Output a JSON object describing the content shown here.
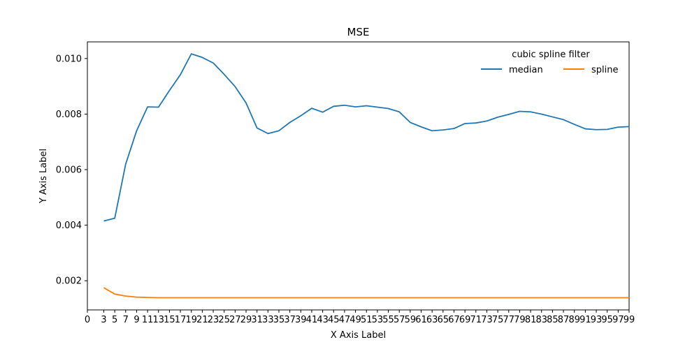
{
  "chart_data": {
    "type": "line",
    "title": "MSE",
    "xlabel": "X Axis Label",
    "ylabel": "Y Axis Label",
    "xlim": [
      0,
      99
    ],
    "ylim": [
      0.00095,
      0.0106
    ],
    "grid": false,
    "x": [
      3,
      5,
      7,
      9,
      11,
      13,
      15,
      17,
      19,
      21,
      23,
      25,
      27,
      29,
      31,
      33,
      35,
      37,
      39,
      41,
      43,
      45,
      47,
      49,
      51,
      53,
      55,
      57,
      59,
      61,
      63,
      65,
      67,
      69,
      71,
      73,
      75,
      77,
      79,
      81,
      83,
      85,
      87,
      89,
      91,
      93,
      95,
      97,
      99
    ],
    "x_ticks": [
      0,
      3,
      5,
      7,
      9,
      11,
      13,
      15,
      17,
      19,
      21,
      23,
      25,
      27,
      29,
      31,
      33,
      35,
      37,
      39,
      41,
      43,
      45,
      47,
      49,
      51,
      53,
      55,
      57,
      59,
      61,
      63,
      65,
      67,
      69,
      71,
      73,
      75,
      77,
      79,
      81,
      83,
      85,
      87,
      89,
      91,
      93,
      95,
      97,
      99
    ],
    "y_ticks": [
      "0.002",
      "0.004",
      "0.006",
      "0.008",
      "0.010"
    ],
    "legend": {
      "title": "cubic spline filter",
      "placement": "top-right",
      "ncol": 2
    },
    "series": [
      {
        "name": "median",
        "color": "#1f77b4",
        "values": [
          0.00415,
          0.00425,
          0.0062,
          0.0074,
          0.00826,
          0.00825,
          0.00885,
          0.00942,
          0.01017,
          0.01004,
          0.00984,
          0.00943,
          0.00899,
          0.0084,
          0.0075,
          0.0073,
          0.0074,
          0.0077,
          0.00794,
          0.00821,
          0.00807,
          0.00828,
          0.00832,
          0.00826,
          0.0083,
          0.00825,
          0.0082,
          0.00808,
          0.0077,
          0.00754,
          0.0074,
          0.00743,
          0.00748,
          0.00766,
          0.00768,
          0.00775,
          0.00789,
          0.00799,
          0.0081,
          0.00808,
          0.008,
          0.0079,
          0.0078,
          0.00763,
          0.00747,
          0.00744,
          0.00745,
          0.00753,
          0.00755
        ]
      },
      {
        "name": "spline",
        "color": "#ff7f0e",
        "values": [
          0.00175,
          0.00152,
          0.00145,
          0.00141,
          0.0014,
          0.00139,
          0.00139,
          0.00139,
          0.00139,
          0.00139,
          0.00139,
          0.00139,
          0.00139,
          0.00139,
          0.00139,
          0.00139,
          0.00139,
          0.00139,
          0.00139,
          0.00139,
          0.00139,
          0.00139,
          0.00139,
          0.00139,
          0.00139,
          0.00139,
          0.00139,
          0.00139,
          0.00139,
          0.00139,
          0.00139,
          0.00139,
          0.00139,
          0.00139,
          0.00139,
          0.00139,
          0.00139,
          0.00139,
          0.00139,
          0.00139,
          0.00139,
          0.00139,
          0.00139,
          0.00139,
          0.00139,
          0.00139,
          0.00139,
          0.00139,
          0.00139
        ]
      }
    ]
  }
}
